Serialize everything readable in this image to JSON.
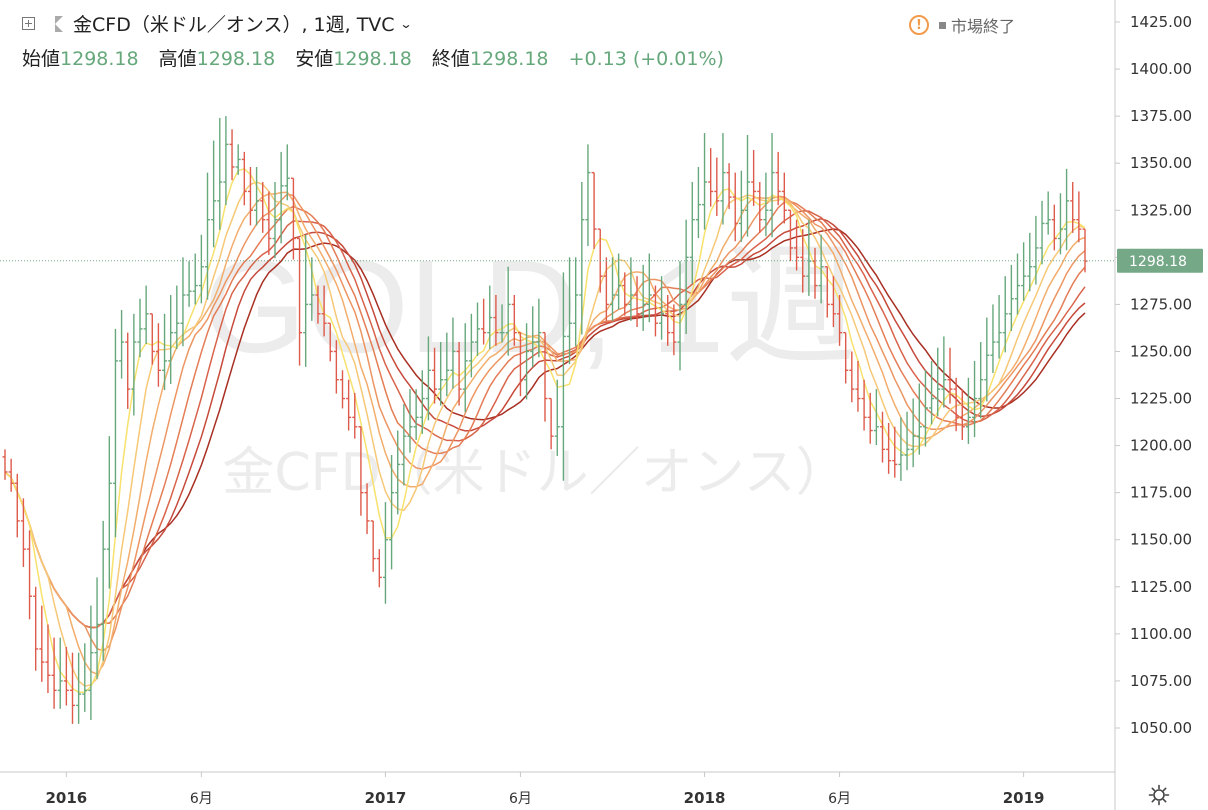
{
  "header": {
    "symbol_title": "金CFD（米ドル／オンス）, 1週, TVC",
    "open_label": "始値",
    "open_value": "1298.18",
    "high_label": "高値",
    "high_value": "1298.18",
    "low_label": "安値",
    "low_value": "1298.18",
    "close_label": "終値",
    "close_value": "1298.18",
    "change": "+0.13 (+0.01%)"
  },
  "status": {
    "text": "市場終了",
    "warning_glyph": "!"
  },
  "watermark": {
    "line1": "GOLD, 1週",
    "line2": "金CFD（米ドル／オンス）"
  },
  "icons": {
    "add": "plus-square-icon",
    "flag": "flag-icon",
    "settings": "gear-icon"
  },
  "chart_data": {
    "type": "ohlc",
    "y_axis": {
      "min": 1025,
      "max": 1440,
      "ticks": [
        "1425.00",
        "1400.00",
        "1375.00",
        "1350.00",
        "1325.00",
        "1300.00",
        "1275.00",
        "1250.00",
        "1225.00",
        "1200.00",
        "1175.00",
        "1150.00",
        "1125.00",
        "1100.00",
        "1075.00",
        "1050.00"
      ],
      "side": "right"
    },
    "x_axis": {
      "ticks": [
        {
          "label": "2016",
          "week": 10,
          "bold": true
        },
        {
          "label": "6月",
          "week": 32,
          "bold": false
        },
        {
          "label": "2017",
          "week": 62,
          "bold": true
        },
        {
          "label": "6月",
          "week": 84,
          "bold": false
        },
        {
          "label": "2018",
          "week": 114,
          "bold": true
        },
        {
          "label": "6月",
          "week": 136,
          "bold": false
        },
        {
          "label": "2019",
          "week": 166,
          "bold": true
        }
      ]
    },
    "last_price": {
      "value": 1298.18,
      "label": "1298.18"
    },
    "bars": {
      "start": "2015-10-19",
      "close": [
        1186,
        1180,
        1160,
        1145,
        1120,
        1092,
        1085,
        1078,
        1070,
        1075,
        1070,
        1062,
        1068,
        1070,
        1090,
        1105,
        1145,
        1180,
        1245,
        1255,
        1230,
        1255,
        1262,
        1270,
        1250,
        1240,
        1245,
        1260,
        1265,
        1280,
        1282,
        1285,
        1295,
        1320,
        1330,
        1340,
        1360,
        1348,
        1352,
        1335,
        1325,
        1330,
        1320,
        1310,
        1320,
        1338,
        1342,
        1310,
        1260,
        1275,
        1280,
        1270,
        1265,
        1250,
        1235,
        1225,
        1215,
        1210,
        1175,
        1160,
        1140,
        1130,
        1150,
        1175,
        1190,
        1205,
        1210,
        1215,
        1225,
        1240,
        1230,
        1235,
        1240,
        1250,
        1230,
        1245,
        1255,
        1262,
        1260,
        1268,
        1260,
        1260,
        1275,
        1260,
        1235,
        1250,
        1255,
        1260,
        1225,
        1205,
        1210,
        1258,
        1265,
        1280,
        1320,
        1345,
        1315,
        1290,
        1275,
        1280,
        1285,
        1275,
        1280,
        1270,
        1275,
        1280,
        1265,
        1270,
        1260,
        1255,
        1275,
        1300,
        1320,
        1328,
        1340,
        1335,
        1330,
        1345,
        1332,
        1318,
        1325,
        1340,
        1335,
        1320,
        1325,
        1345,
        1335,
        1325,
        1305,
        1300,
        1290,
        1298,
        1285,
        1295,
        1275,
        1270,
        1260,
        1240,
        1230,
        1225,
        1215,
        1208,
        1210,
        1198,
        1192,
        1190,
        1195,
        1198,
        1205,
        1210,
        1220,
        1225,
        1230,
        1235,
        1230,
        1215,
        1210,
        1215,
        1225,
        1235,
        1248,
        1255,
        1260,
        1270,
        1278,
        1285,
        1290,
        1295,
        1305,
        1318,
        1320,
        1310,
        1315,
        1330,
        1320,
        1315,
        1298
      ],
      "range": [
        1198,
        1193,
        1185,
        1172,
        1155,
        1125,
        1115,
        1105,
        1098,
        1098,
        1093,
        1090,
        1090,
        1095,
        1115,
        1130,
        1160,
        1205,
        1262,
        1272,
        1260,
        1270,
        1278,
        1285,
        1270,
        1265,
        1270,
        1280,
        1285,
        1300,
        1298,
        1302,
        1312,
        1345,
        1362,
        1374,
        1375,
        1368,
        1360,
        1356,
        1348,
        1348,
        1340,
        1335,
        1340,
        1356,
        1360,
        1328,
        1290,
        1312,
        1300,
        1285,
        1285,
        1265,
        1256,
        1240,
        1235,
        1228,
        1195,
        1180,
        1160,
        1145,
        1170,
        1195,
        1208,
        1222,
        1230,
        1230,
        1240,
        1258,
        1252,
        1255,
        1260,
        1268,
        1255,
        1265,
        1270,
        1276,
        1278,
        1285,
        1280,
        1275,
        1295,
        1280,
        1258,
        1265,
        1274,
        1278,
        1245,
        1225,
        1235,
        1292,
        1300,
        1300,
        1340,
        1360,
        1340,
        1310,
        1300,
        1300,
        1302,
        1292,
        1300,
        1290,
        1296,
        1302,
        1285,
        1290,
        1280,
        1275,
        1298,
        1320,
        1340,
        1348,
        1366,
        1358,
        1353,
        1366,
        1350,
        1345,
        1346,
        1365,
        1357,
        1340,
        1345,
        1366,
        1356,
        1345,
        1322,
        1320,
        1315,
        1320,
        1305,
        1312,
        1295,
        1290,
        1280,
        1260,
        1250,
        1245,
        1235,
        1228,
        1230,
        1218,
        1212,
        1210,
        1215,
        1218,
        1225,
        1233,
        1240,
        1245,
        1252,
        1258,
        1252,
        1236,
        1230,
        1236,
        1245,
        1255,
        1268,
        1275,
        1280,
        1290,
        1296,
        1302,
        1308,
        1313,
        1322,
        1330,
        1335,
        1328,
        1334,
        1347,
        1340,
        1335,
        1302
      ]
    },
    "series": [
      {
        "ma_period": 5,
        "color": "#f8e16c"
      },
      {
        "ma_period": 8,
        "color": "#f6c877"
      },
      {
        "ma_period": 11,
        "color": "#f2ad6c"
      },
      {
        "ma_period": 14,
        "color": "#ec9562"
      },
      {
        "ma_period": 17,
        "color": "#e47c55"
      },
      {
        "ma_period": 20,
        "color": "#d8634a"
      },
      {
        "ma_period": 23,
        "color": "#c64a3b"
      },
      {
        "ma_period": 26,
        "color": "#a82f22"
      }
    ],
    "colors": {
      "up": "#66a87c",
      "down": "#de5a4a",
      "last_price_label": "#75a887",
      "axis_text": "#333333",
      "grid_border": "#c8c8c8"
    }
  }
}
